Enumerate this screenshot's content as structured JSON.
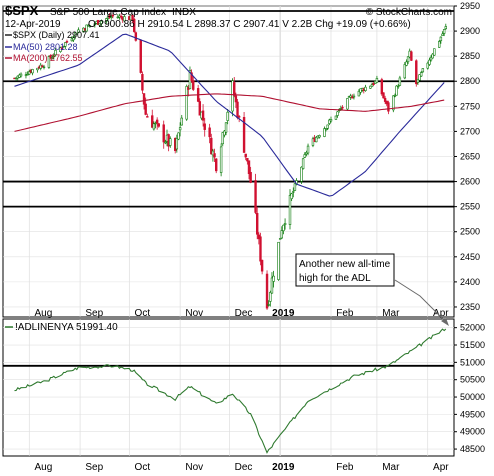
{
  "header": {
    "symbol": "$SPX",
    "name": "S&P 500 Large Cap Index",
    "exchange": "INDX",
    "watermark": "© StockCharts.com",
    "date": "12-Apr-2019",
    "ohlc": "O 2900.86  H 2910.54  L 2898.37  C 2907.41  V 2.2B  Chg +19.09 (+0.66%)",
    "legend_price": "$SPX (Daily) 2907.41",
    "legend_ma50": "MA(50) 2801.28",
    "legend_ma200": "MA(200) 2762.55"
  },
  "lower_panel": {
    "label": "!ADLINENYA 51991.40"
  },
  "annotation": {
    "line1": "Another new all-time",
    "line2": "high for the ADL"
  },
  "colors": {
    "up": "#0a7a0a",
    "down": "#d01030",
    "ma50": "#2a2a9a",
    "ma200": "#b01030",
    "adl": "#2f7a2f",
    "arrow": "#6a6a6a"
  },
  "chart_data": [
    {
      "type": "candlestick",
      "title": "$SPX S&P 500 Large Cap Index",
      "x_ticks": [
        "Aug",
        "Sep",
        "Oct",
        "Nov",
        "Dec",
        "2019",
        "Feb",
        "Mar",
        "Apr"
      ],
      "ylim": [
        2330,
        2950
      ],
      "y_ticks": [
        2350,
        2400,
        2450,
        2500,
        2550,
        2600,
        2650,
        2700,
        2750,
        2800,
        2850,
        2900,
        2950
      ],
      "horizontal_lines": [
        2940,
        2800,
        2600,
        2550
      ],
      "series": [
        {
          "name": "$SPX (Daily)",
          "points": [
            [
              "2018-07-23",
              2806
            ],
            [
              "2018-08-10",
              2834
            ],
            [
              "2018-08-31",
              2902
            ],
            [
              "2018-09-21",
              2930
            ],
            [
              "2018-10-03",
              2925
            ],
            [
              "2018-10-11",
              2735
            ],
            [
              "2018-10-29",
              2660
            ],
            [
              "2018-11-07",
              2813
            ],
            [
              "2018-11-23",
              2635
            ],
            [
              "2018-12-03",
              2790
            ],
            [
              "2018-12-14",
              2600
            ],
            [
              "2018-12-24",
              2351
            ],
            [
              "2019-01-02",
              2510
            ],
            [
              "2019-01-18",
              2670
            ],
            [
              "2019-02-15",
              2775
            ],
            [
              "2019-03-01",
              2800
            ],
            [
              "2019-03-08",
              2743
            ],
            [
              "2019-03-21",
              2855
            ],
            [
              "2019-03-25",
              2795
            ],
            [
              "2019-04-12",
              2907
            ]
          ]
        },
        {
          "name": "MA(50)",
          "points": [
            [
              "2018-07-23",
              2790
            ],
            [
              "2018-08-31",
              2832
            ],
            [
              "2018-09-28",
              2895
            ],
            [
              "2018-10-26",
              2860
            ],
            [
              "2018-11-23",
              2760
            ],
            [
              "2018-12-21",
              2690
            ],
            [
              "2019-01-11",
              2595
            ],
            [
              "2019-02-01",
              2570
            ],
            [
              "2019-02-22",
              2620
            ],
            [
              "2019-03-15",
              2700
            ],
            [
              "2019-04-12",
              2801
            ]
          ]
        },
        {
          "name": "MA(200)",
          "points": [
            [
              "2018-07-23",
              2700
            ],
            [
              "2018-08-31",
              2730
            ],
            [
              "2018-09-28",
              2755
            ],
            [
              "2018-10-26",
              2770
            ],
            [
              "2018-11-23",
              2775
            ],
            [
              "2018-12-21",
              2770
            ],
            [
              "2019-01-25",
              2745
            ],
            [
              "2019-02-22",
              2740
            ],
            [
              "2019-03-22",
              2750
            ],
            [
              "2019-04-12",
              2763
            ]
          ]
        }
      ],
      "annotation": "Another new all-time high for the ADL"
    },
    {
      "type": "line",
      "series_name": "!ADLINENYA",
      "last_value": 51991.4,
      "x_ticks": [
        "Aug",
        "Sep",
        "Oct",
        "Nov",
        "Dec",
        "2019",
        "Feb",
        "Mar",
        "Apr"
      ],
      "ylim": [
        48300,
        52250
      ],
      "y_ticks": [
        48500,
        49000,
        49500,
        50000,
        50500,
        51000,
        51500,
        52000
      ],
      "horizontal_lines": [
        50900
      ],
      "points": [
        [
          "2018-07-23",
          50200
        ],
        [
          "2018-08-10",
          50450
        ],
        [
          "2018-08-31",
          50850
        ],
        [
          "2018-09-21",
          50900
        ],
        [
          "2018-10-03",
          50780
        ],
        [
          "2018-10-11",
          50400
        ],
        [
          "2018-10-29",
          49950
        ],
        [
          "2018-11-07",
          50300
        ],
        [
          "2018-11-23",
          49800
        ],
        [
          "2018-12-03",
          50100
        ],
        [
          "2018-12-14",
          49500
        ],
        [
          "2018-12-24",
          48400
        ],
        [
          "2019-01-02",
          48950
        ],
        [
          "2019-01-18",
          49900
        ],
        [
          "2019-02-15",
          50600
        ],
        [
          "2019-03-08",
          50900
        ],
        [
          "2019-03-21",
          51300
        ],
        [
          "2019-04-12",
          51991
        ]
      ]
    }
  ]
}
